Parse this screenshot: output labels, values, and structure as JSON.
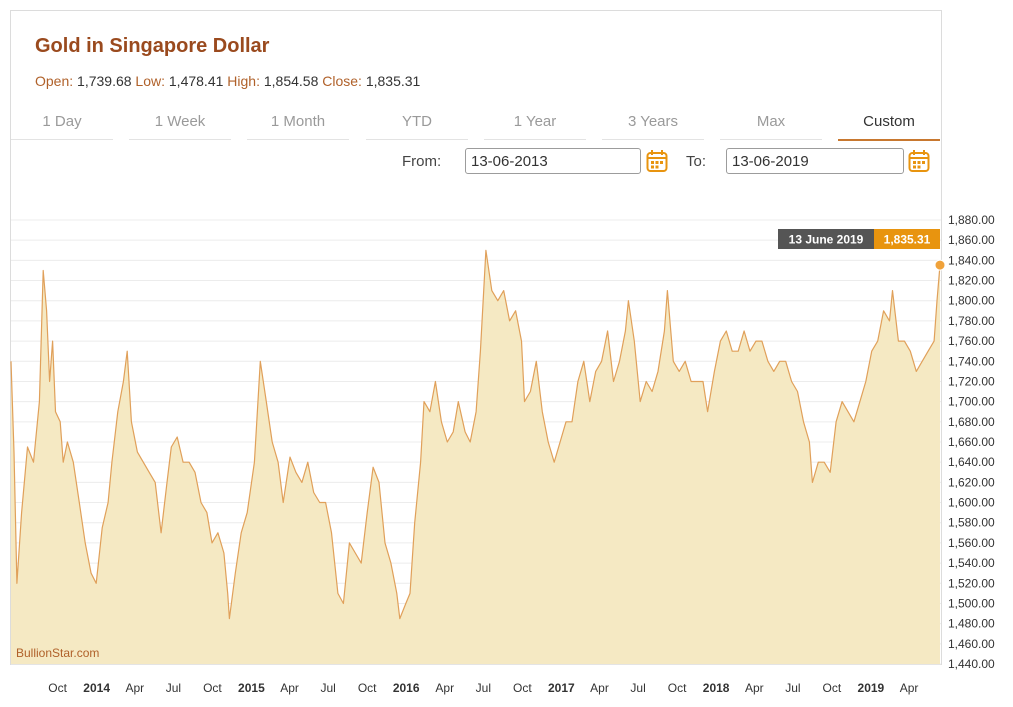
{
  "chart_title": "Gold in Singapore Dollar",
  "stats": {
    "open_label": "Open:",
    "open": "1,739.68",
    "low_label": "Low:",
    "low": "1,478.41",
    "high_label": "High:",
    "high": "1,854.58",
    "close_label": "Close:",
    "close": "1,835.31"
  },
  "tabs": [
    {
      "label": "1 Day"
    },
    {
      "label": "1 Week"
    },
    {
      "label": "1 Month"
    },
    {
      "label": "YTD"
    },
    {
      "label": "1 Year"
    },
    {
      "label": "3 Years"
    },
    {
      "label": "Max"
    },
    {
      "label": "Custom"
    }
  ],
  "active_tab": "Custom",
  "range": {
    "from_label": "From:",
    "from_value": "13-06-2013",
    "to_label": "To:",
    "to_value": "13-06-2019"
  },
  "tooltip": {
    "date": "13 June 2019",
    "value": "1,835.31"
  },
  "watermark": "BullionStar.com",
  "colors": {
    "title": "#9a4a1e",
    "accent": "#e8940f",
    "line": "#e0a05a",
    "fill": "#f5e9c3",
    "tooltip_bg": "#555555"
  },
  "chart_data": {
    "type": "area",
    "title": "Gold in Singapore Dollar",
    "currency": "SGD",
    "ylim": [
      1440,
      1880
    ],
    "y_ticks": [
      "1,440.00",
      "1,460.00",
      "1,480.00",
      "1,500.00",
      "1,520.00",
      "1,540.00",
      "1,560.00",
      "1,580.00",
      "1,600.00",
      "1,620.00",
      "1,640.00",
      "1,660.00",
      "1,680.00",
      "1,700.00",
      "1,720.00",
      "1,740.00",
      "1,760.00",
      "1,780.00",
      "1,800.00",
      "1,820.00",
      "1,840.00",
      "1,860.00",
      "1,880.00"
    ],
    "y_tick_values": [
      1440,
      1460,
      1480,
      1500,
      1520,
      1540,
      1560,
      1580,
      1600,
      1620,
      1640,
      1660,
      1680,
      1700,
      1720,
      1740,
      1760,
      1780,
      1800,
      1820,
      1840,
      1860,
      1880
    ],
    "x_range": [
      "2013-06-13",
      "2019-06-13"
    ],
    "x_ticks": [
      {
        "label": "Oct",
        "date": "2013-10-01",
        "year": false
      },
      {
        "label": "2014",
        "date": "2014-01-01",
        "year": true
      },
      {
        "label": "Apr",
        "date": "2014-04-01",
        "year": false
      },
      {
        "label": "Jul",
        "date": "2014-07-01",
        "year": false
      },
      {
        "label": "Oct",
        "date": "2014-10-01",
        "year": false
      },
      {
        "label": "2015",
        "date": "2015-01-01",
        "year": true
      },
      {
        "label": "Apr",
        "date": "2015-04-01",
        "year": false
      },
      {
        "label": "Jul",
        "date": "2015-07-01",
        "year": false
      },
      {
        "label": "Oct",
        "date": "2015-10-01",
        "year": false
      },
      {
        "label": "2016",
        "date": "2016-01-01",
        "year": true
      },
      {
        "label": "Apr",
        "date": "2016-04-01",
        "year": false
      },
      {
        "label": "Jul",
        "date": "2016-07-01",
        "year": false
      },
      {
        "label": "Oct",
        "date": "2016-10-01",
        "year": false
      },
      {
        "label": "2017",
        "date": "2017-01-01",
        "year": true
      },
      {
        "label": "Apr",
        "date": "2017-04-01",
        "year": false
      },
      {
        "label": "Jul",
        "date": "2017-07-01",
        "year": false
      },
      {
        "label": "Oct",
        "date": "2017-10-01",
        "year": false
      },
      {
        "label": "2018",
        "date": "2018-01-01",
        "year": true
      },
      {
        "label": "Apr",
        "date": "2018-04-01",
        "year": false
      },
      {
        "label": "Jul",
        "date": "2018-07-01",
        "year": false
      },
      {
        "label": "Oct",
        "date": "2018-10-01",
        "year": false
      },
      {
        "label": "2019",
        "date": "2019-01-01",
        "year": true
      },
      {
        "label": "Apr",
        "date": "2019-04-01",
        "year": false
      }
    ],
    "series": [
      {
        "points": [
          [
            "2013-06-13",
            1740
          ],
          [
            "2013-06-20",
            1650
          ],
          [
            "2013-06-27",
            1520
          ],
          [
            "2013-07-08",
            1590
          ],
          [
            "2013-07-22",
            1655
          ],
          [
            "2013-08-05",
            1640
          ],
          [
            "2013-08-19",
            1700
          ],
          [
            "2013-08-28",
            1830
          ],
          [
            "2013-09-05",
            1790
          ],
          [
            "2013-09-12",
            1720
          ],
          [
            "2013-09-19",
            1760
          ],
          [
            "2013-09-26",
            1690
          ],
          [
            "2013-10-07",
            1680
          ],
          [
            "2013-10-14",
            1640
          ],
          [
            "2013-10-24",
            1660
          ],
          [
            "2013-11-07",
            1640
          ],
          [
            "2013-11-21",
            1600
          ],
          [
            "2013-12-05",
            1560
          ],
          [
            "2013-12-19",
            1530
          ],
          [
            "2013-12-31",
            1520
          ],
          [
            "2014-01-14",
            1575
          ],
          [
            "2014-01-28",
            1600
          ],
          [
            "2014-02-06",
            1640
          ],
          [
            "2014-02-20",
            1690
          ],
          [
            "2014-03-05",
            1720
          ],
          [
            "2014-03-14",
            1750
          ],
          [
            "2014-03-24",
            1680
          ],
          [
            "2014-04-07",
            1650
          ],
          [
            "2014-04-21",
            1640
          ],
          [
            "2014-05-05",
            1630
          ],
          [
            "2014-05-19",
            1620
          ],
          [
            "2014-06-02",
            1570
          ],
          [
            "2014-06-16",
            1620
          ],
          [
            "2014-06-26",
            1655
          ],
          [
            "2014-07-10",
            1665
          ],
          [
            "2014-07-24",
            1640
          ],
          [
            "2014-08-07",
            1640
          ],
          [
            "2014-08-21",
            1630
          ],
          [
            "2014-09-04",
            1600
          ],
          [
            "2014-09-18",
            1590
          ],
          [
            "2014-09-30",
            1560
          ],
          [
            "2014-10-14",
            1570
          ],
          [
            "2014-10-28",
            1550
          ],
          [
            "2014-11-06",
            1510
          ],
          [
            "2014-11-10",
            1485
          ],
          [
            "2014-11-24",
            1530
          ],
          [
            "2014-12-08",
            1570
          ],
          [
            "2014-12-22",
            1590
          ],
          [
            "2015-01-08",
            1640
          ],
          [
            "2015-01-22",
            1740
          ],
          [
            "2015-02-05",
            1700
          ],
          [
            "2015-02-19",
            1660
          ],
          [
            "2015-03-05",
            1640
          ],
          [
            "2015-03-17",
            1600
          ],
          [
            "2015-04-02",
            1645
          ],
          [
            "2015-04-16",
            1630
          ],
          [
            "2015-04-30",
            1620
          ],
          [
            "2015-05-14",
            1640
          ],
          [
            "2015-05-28",
            1610
          ],
          [
            "2015-06-11",
            1600
          ],
          [
            "2015-06-25",
            1600
          ],
          [
            "2015-07-09",
            1570
          ],
          [
            "2015-07-24",
            1510
          ],
          [
            "2015-08-06",
            1500
          ],
          [
            "2015-08-20",
            1560
          ],
          [
            "2015-09-03",
            1550
          ],
          [
            "2015-09-17",
            1540
          ],
          [
            "2015-10-01",
            1590
          ],
          [
            "2015-10-15",
            1635
          ],
          [
            "2015-10-29",
            1620
          ],
          [
            "2015-11-12",
            1560
          ],
          [
            "2015-11-26",
            1540
          ],
          [
            "2015-12-10",
            1510
          ],
          [
            "2015-12-17",
            1485
          ],
          [
            "2015-12-31",
            1500
          ],
          [
            "2016-01-10",
            1510
          ],
          [
            "2016-01-21",
            1580
          ],
          [
            "2016-02-04",
            1640
          ],
          [
            "2016-02-12",
            1700
          ],
          [
            "2016-02-26",
            1690
          ],
          [
            "2016-03-10",
            1720
          ],
          [
            "2016-03-24",
            1680
          ],
          [
            "2016-04-07",
            1660
          ],
          [
            "2016-04-21",
            1670
          ],
          [
            "2016-05-03",
            1700
          ],
          [
            "2016-05-19",
            1670
          ],
          [
            "2016-05-31",
            1660
          ],
          [
            "2016-06-14",
            1690
          ],
          [
            "2016-06-24",
            1750
          ],
          [
            "2016-07-07",
            1850
          ],
          [
            "2016-07-21",
            1810
          ],
          [
            "2016-08-04",
            1800
          ],
          [
            "2016-08-18",
            1810
          ],
          [
            "2016-09-01",
            1780
          ],
          [
            "2016-09-15",
            1790
          ],
          [
            "2016-09-29",
            1760
          ],
          [
            "2016-10-06",
            1700
          ],
          [
            "2016-10-20",
            1710
          ],
          [
            "2016-11-03",
            1740
          ],
          [
            "2016-11-17",
            1690
          ],
          [
            "2016-12-01",
            1660
          ],
          [
            "2016-12-15",
            1640
          ],
          [
            "2016-12-29",
            1660
          ],
          [
            "2017-01-12",
            1680
          ],
          [
            "2017-01-26",
            1680
          ],
          [
            "2017-02-09",
            1720
          ],
          [
            "2017-02-23",
            1740
          ],
          [
            "2017-03-09",
            1700
          ],
          [
            "2017-03-23",
            1730
          ],
          [
            "2017-04-06",
            1740
          ],
          [
            "2017-04-20",
            1770
          ],
          [
            "2017-05-04",
            1720
          ],
          [
            "2017-05-18",
            1740
          ],
          [
            "2017-06-01",
            1770
          ],
          [
            "2017-06-08",
            1800
          ],
          [
            "2017-06-22",
            1760
          ],
          [
            "2017-07-06",
            1700
          ],
          [
            "2017-07-20",
            1720
          ],
          [
            "2017-08-03",
            1710
          ],
          [
            "2017-08-17",
            1730
          ],
          [
            "2017-09-01",
            1770
          ],
          [
            "2017-09-08",
            1810
          ],
          [
            "2017-09-22",
            1740
          ],
          [
            "2017-10-06",
            1730
          ],
          [
            "2017-10-20",
            1740
          ],
          [
            "2017-11-03",
            1720
          ],
          [
            "2017-11-17",
            1720
          ],
          [
            "2017-12-01",
            1720
          ],
          [
            "2017-12-12",
            1690
          ],
          [
            "2017-12-28",
            1730
          ],
          [
            "2018-01-11",
            1760
          ],
          [
            "2018-01-25",
            1770
          ],
          [
            "2018-02-08",
            1750
          ],
          [
            "2018-02-22",
            1750
          ],
          [
            "2018-03-08",
            1770
          ],
          [
            "2018-03-22",
            1750
          ],
          [
            "2018-04-05",
            1760
          ],
          [
            "2018-04-19",
            1760
          ],
          [
            "2018-05-03",
            1740
          ],
          [
            "2018-05-17",
            1730
          ],
          [
            "2018-05-31",
            1740
          ],
          [
            "2018-06-14",
            1740
          ],
          [
            "2018-06-28",
            1720
          ],
          [
            "2018-07-12",
            1710
          ],
          [
            "2018-07-26",
            1680
          ],
          [
            "2018-08-09",
            1660
          ],
          [
            "2018-08-16",
            1620
          ],
          [
            "2018-08-30",
            1640
          ],
          [
            "2018-09-13",
            1640
          ],
          [
            "2018-09-27",
            1630
          ],
          [
            "2018-10-11",
            1680
          ],
          [
            "2018-10-25",
            1700
          ],
          [
            "2018-11-08",
            1690
          ],
          [
            "2018-11-22",
            1680
          ],
          [
            "2018-12-06",
            1700
          ],
          [
            "2018-12-20",
            1720
          ],
          [
            "2019-01-03",
            1750
          ],
          [
            "2019-01-17",
            1760
          ],
          [
            "2019-01-31",
            1790
          ],
          [
            "2019-02-14",
            1780
          ],
          [
            "2019-02-21",
            1810
          ],
          [
            "2019-03-07",
            1760
          ],
          [
            "2019-03-21",
            1760
          ],
          [
            "2019-04-04",
            1750
          ],
          [
            "2019-04-18",
            1730
          ],
          [
            "2019-05-02",
            1740
          ],
          [
            "2019-05-16",
            1750
          ],
          [
            "2019-05-30",
            1760
          ],
          [
            "2019-06-06",
            1800
          ],
          [
            "2019-06-13",
            1835.31
          ]
        ]
      }
    ],
    "grid": true,
    "legend": "none"
  }
}
